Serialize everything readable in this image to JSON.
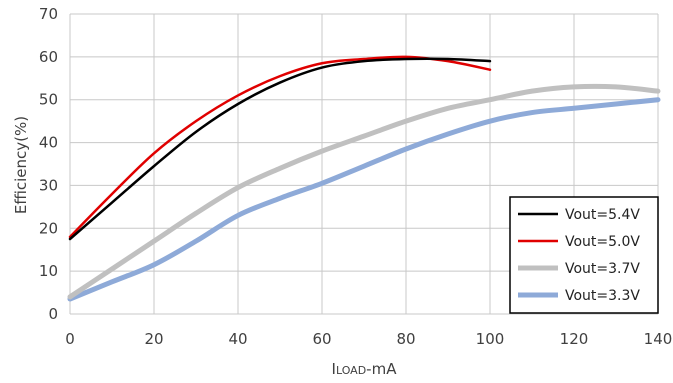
{
  "chart_data": {
    "type": "line",
    "xlabel": "ILOAD-mA",
    "ylabel": "Efficiency(%)",
    "xlim": [
      0,
      140
    ],
    "ylim": [
      0,
      70
    ],
    "xticks": [
      "0",
      "20",
      "40",
      "60",
      "80",
      "100",
      "120",
      "140"
    ],
    "yticks": [
      "0",
      "10",
      "20",
      "30",
      "40",
      "50",
      "60",
      "70"
    ],
    "grid": true,
    "legend_position": "bottom-right",
    "series": [
      {
        "name": "Vout=5.4V",
        "color": "#000000",
        "x": [
          0,
          10,
          20,
          30,
          40,
          50,
          60,
          70,
          80,
          90,
          100
        ],
        "y": [
          17.5,
          26,
          34.5,
          42.5,
          49,
          54,
          57.5,
          59,
          59.5,
          59.5,
          59
        ]
      },
      {
        "name": "Vout=5.0V",
        "color": "#e00000",
        "x": [
          0,
          10,
          20,
          30,
          40,
          50,
          60,
          70,
          80,
          90,
          100
        ],
        "y": [
          18,
          28,
          37.5,
          45,
          51,
          55.5,
          58.5,
          59.5,
          60,
          59,
          57
        ]
      },
      {
        "name": "Vout=3.7V",
        "color": "#c0c0c0",
        "x": [
          0,
          10,
          20,
          30,
          40,
          50,
          60,
          70,
          80,
          90,
          100,
          110,
          120,
          130,
          140
        ],
        "y": [
          4,
          10.5,
          17,
          23.5,
          29.5,
          34,
          38,
          41.5,
          45,
          48,
          50,
          52,
          53,
          53,
          52
        ]
      },
      {
        "name": "Vout=3.3V",
        "color": "#8eaad8",
        "x": [
          0,
          10,
          20,
          30,
          40,
          50,
          60,
          70,
          80,
          90,
          100,
          110,
          120,
          130,
          140
        ],
        "y": [
          3.5,
          7.5,
          11.5,
          17,
          23,
          27,
          30.5,
          34.5,
          38.5,
          42,
          45,
          47,
          48,
          49,
          50
        ]
      }
    ]
  }
}
